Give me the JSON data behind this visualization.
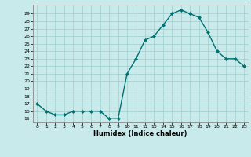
{
  "x": [
    0,
    1,
    2,
    3,
    4,
    5,
    6,
    7,
    8,
    9,
    10,
    11,
    12,
    13,
    14,
    15,
    16,
    17,
    18,
    19,
    20,
    21,
    22,
    23
  ],
  "y": [
    17,
    16,
    15.5,
    15.5,
    16,
    16,
    16,
    16,
    15,
    15,
    21,
    23,
    25.5,
    26,
    27.5,
    29,
    29.5,
    29,
    28.5,
    26.5,
    24,
    23,
    23,
    22
  ],
  "line_color": "#007070",
  "marker_color": "#007070",
  "bg_color": "#c8eaea",
  "grid_color": "#a0cccc",
  "xlabel": "Humidex (Indice chaleur)",
  "ylim": [
    14.5,
    30.2
  ],
  "xlim": [
    -0.5,
    23.5
  ],
  "yticks": [
    15,
    16,
    17,
    18,
    19,
    20,
    21,
    22,
    23,
    24,
    25,
    26,
    27,
    28,
    29
  ],
  "xticks": [
    0,
    1,
    2,
    3,
    4,
    5,
    6,
    7,
    8,
    9,
    10,
    11,
    12,
    13,
    14,
    15,
    16,
    17,
    18,
    19,
    20,
    21,
    22,
    23
  ]
}
